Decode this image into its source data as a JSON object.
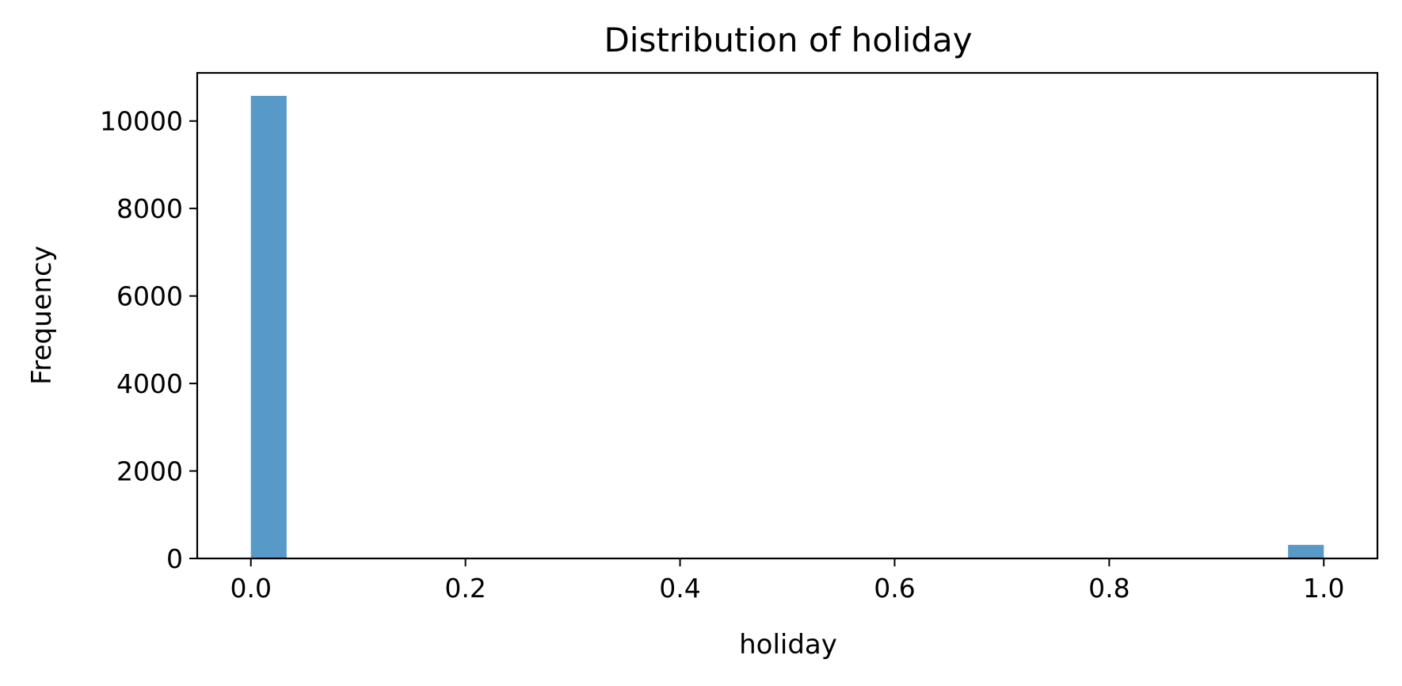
{
  "chart_data": {
    "type": "bar",
    "title": "Distribution of holiday",
    "xlabel": "holiday",
    "ylabel": "Frequency",
    "xlim": [
      -0.05,
      1.05
    ],
    "ylim": [
      0,
      11100
    ],
    "xticks": [
      "0.0",
      "0.2",
      "0.4",
      "0.6",
      "0.8",
      "1.0"
    ],
    "yticks": [
      "0",
      "2000",
      "4000",
      "6000",
      "8000",
      "10000"
    ],
    "bins": [
      {
        "x0": 0.0,
        "x1": 0.0333,
        "value": 10575
      },
      {
        "x0": 0.9667,
        "x1": 1.0,
        "value": 311
      }
    ],
    "bar_color": "#5799c7",
    "grid": false,
    "legend": "none"
  }
}
